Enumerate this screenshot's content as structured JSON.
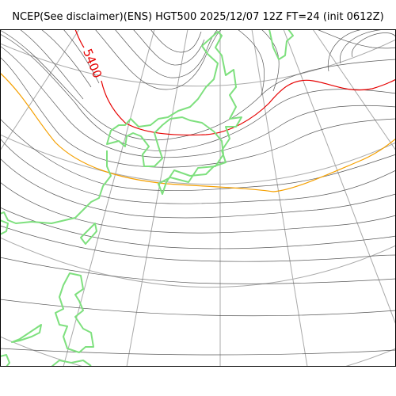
{
  "header": {
    "title": "NCEP(See disclaimer)(ENS) HGT500 2025/12/07 12Z FT=24 (init 0612Z)"
  },
  "map": {
    "contour_labels": [
      {
        "text": "5400"
      }
    ],
    "colors": {
      "background": "#ffffff",
      "frame": "#000000",
      "graticule": "#a9a9a9",
      "contour": "#5a5a5a",
      "contour_5400": "#e60000",
      "contour_5700": "#f5a000",
      "coastline": "#7ee07e"
    }
  }
}
